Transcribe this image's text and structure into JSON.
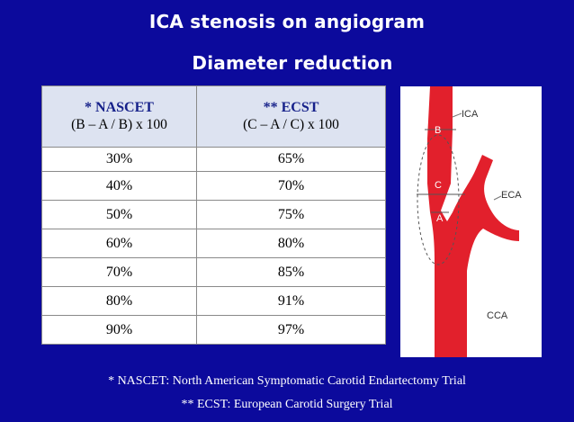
{
  "title": "ICA stenosis on angiogram",
  "subtitle": "Diameter reduction",
  "table": {
    "headers": [
      {
        "name": "* NASCET",
        "formula": "(B – A / B) x 100"
      },
      {
        "name": "** ECST",
        "formula": "(C – A / C) x 100"
      }
    ],
    "rows": [
      [
        "30%",
        "65%"
      ],
      [
        "40%",
        "70%"
      ],
      [
        "50%",
        "75%"
      ],
      [
        "60%",
        "80%"
      ],
      [
        "70%",
        "85%"
      ],
      [
        "80%",
        "91%"
      ],
      [
        "90%",
        "97%"
      ]
    ]
  },
  "diagram": {
    "labels": {
      "ica": "ICA",
      "eca": "ECA",
      "cca": "CCA",
      "b": "B",
      "c": "C",
      "a": "A"
    },
    "vessel_color": "#e2202c"
  },
  "footnotes": [
    "* NASCET: North American Symptomatic Carotid Endartectomy Trial",
    "** ECST: European Carotid Surgery Trial"
  ],
  "colors": {
    "background": "#0c0a9c",
    "header_bg": "#dde3f1",
    "header_text": "#16218a"
  }
}
